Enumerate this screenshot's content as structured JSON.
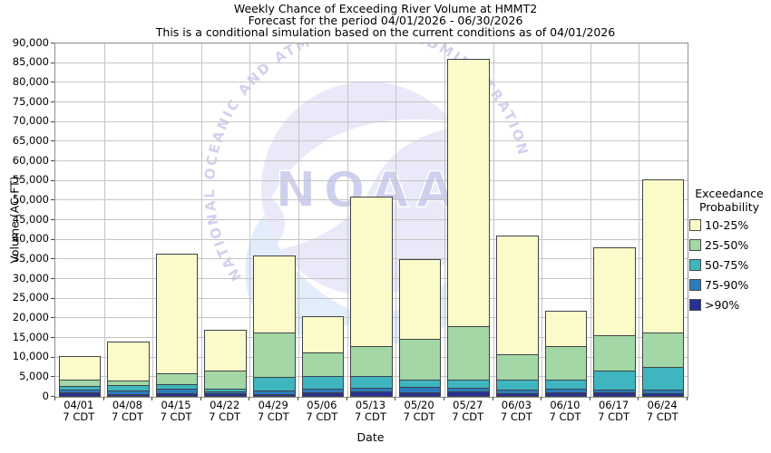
{
  "watermark": {
    "acronym": "NOAA",
    "ring_text": "NATIONAL OCEANIC AND ATMOSPHERIC ADMINISTRATION"
  },
  "chart_data": {
    "type": "bar",
    "stacked": true,
    "title_lines": [
      "Weekly Chance of Exceeding River Volume at HMMT2",
      "Forecast for the period 04/01/2026 - 06/30/2026",
      "This is a conditional simulation based on the current conditions as of 04/01/2026"
    ],
    "xlabel": "Date",
    "ylabel": "Volume (AC-FT)",
    "ylim": [
      0,
      90000
    ],
    "ytick_step": 5000,
    "ytick_labels": [
      "0",
      "5,000",
      "10,000",
      "15,000",
      "20,000",
      "25,000",
      "30,000",
      "35,000",
      "40,000",
      "45,000",
      "50,000",
      "55,000",
      "60,000",
      "65,000",
      "70,000",
      "75,000",
      "80,000",
      "85,000",
      "90,000"
    ],
    "grid": true,
    "categories": [
      "04/01",
      "04/08",
      "04/15",
      "04/22",
      "04/29",
      "05/06",
      "05/13",
      "05/20",
      "05/27",
      "06/03",
      "06/10",
      "06/17",
      "06/24"
    ],
    "x_sublabel": "7 CDT",
    "legend": {
      "title_lines": [
        "Exceedance",
        "Probability"
      ],
      "position": "right"
    },
    "series": [
      {
        "name": "10-25%",
        "color": "#FBFBC9",
        "cumulative_acft": [
          10500,
          14000,
          36500,
          17000,
          36000,
          20500,
          51000,
          35000,
          86000,
          41000,
          22000,
          38000,
          55500
        ]
      },
      {
        "name": "25-50%",
        "color": "#A3D7A6",
        "cumulative_acft": [
          4400,
          4100,
          6000,
          6700,
          16500,
          11200,
          12900,
          14800,
          18000,
          10800,
          13000,
          15600,
          16300
        ]
      },
      {
        "name": "50-75%",
        "color": "#3EB5BF",
        "cumulative_acft": [
          2700,
          3100,
          3300,
          2100,
          5000,
          5200,
          5200,
          4500,
          4400,
          4500,
          4300,
          6700,
          7700
        ]
      },
      {
        "name": "75-90%",
        "color": "#2C7CBB",
        "cumulative_acft": [
          1800,
          1550,
          2100,
          1500,
          1700,
          2100,
          2300,
          2600,
          2400,
          1800,
          2000,
          1900,
          1900
        ]
      },
      {
        "name": ">90%",
        "color": "#283192",
        "cumulative_acft": [
          1150,
          800,
          1000,
          900,
          800,
          1200,
          1300,
          1200,
          1400,
          1000,
          1200,
          1100,
          1000
        ]
      }
    ],
    "note": "Each series value is the river volume (AC-FT) having that exceedance probability; layers are drawn largest (10-25%) behind to smallest (>90%) in front."
  }
}
